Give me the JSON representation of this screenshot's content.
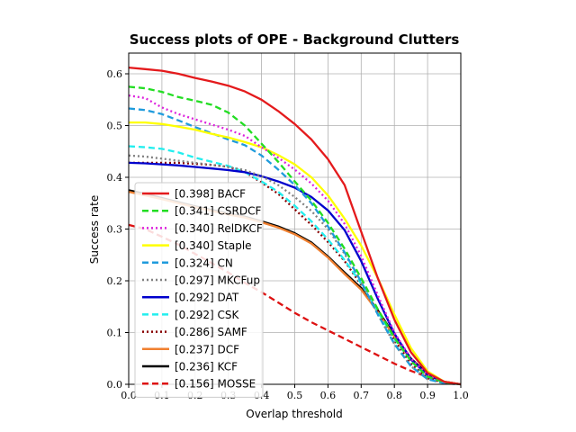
{
  "chart_data": {
    "type": "line",
    "title": "Success plots of OPE - Background Clutters",
    "xlabel": "Overlap threshold",
    "ylabel": "Success rate",
    "xlim": [
      0,
      1
    ],
    "ylim": [
      0,
      0.64
    ],
    "xticks": [
      "0.0",
      "0.1",
      "0.2",
      "0.3",
      "0.4",
      "0.5",
      "0.6",
      "0.7",
      "0.8",
      "0.9",
      "1.0"
    ],
    "yticks": [
      "0.0",
      "0.1",
      "0.2",
      "0.3",
      "0.4",
      "0.5",
      "0.6"
    ],
    "xtick_values": [
      0,
      0.1,
      0.2,
      0.3,
      0.4,
      0.5,
      0.6,
      0.7,
      0.8,
      0.9,
      1.0
    ],
    "ytick_values": [
      0,
      0.1,
      0.2,
      0.3,
      0.4,
      0.5,
      0.6
    ],
    "grid": true,
    "legend_position": "lower-left",
    "series": [
      {
        "name": "[0.398] BACF",
        "color": "#e41a1c",
        "dash": "solid",
        "x": [
          0,
          0.05,
          0.1,
          0.15,
          0.2,
          0.25,
          0.3,
          0.35,
          0.4,
          0.45,
          0.5,
          0.55,
          0.6,
          0.65,
          0.7,
          0.75,
          0.8,
          0.85,
          0.9,
          0.95,
          1.0
        ],
        "y": [
          0.612,
          0.609,
          0.606,
          0.6,
          0.592,
          0.585,
          0.577,
          0.566,
          0.55,
          0.528,
          0.503,
          0.473,
          0.435,
          0.385,
          0.295,
          0.205,
          0.125,
          0.062,
          0.022,
          0.005,
          0.0
        ]
      },
      {
        "name": "[0.341] CSRDCF",
        "color": "#22dd22",
        "dash": "dashed",
        "x": [
          0,
          0.05,
          0.1,
          0.15,
          0.2,
          0.25,
          0.3,
          0.35,
          0.4,
          0.45,
          0.5,
          0.55,
          0.6,
          0.65,
          0.7,
          0.75,
          0.8,
          0.85,
          0.9,
          0.95,
          1.0
        ],
        "y": [
          0.575,
          0.572,
          0.565,
          0.555,
          0.548,
          0.54,
          0.525,
          0.5,
          0.465,
          0.43,
          0.392,
          0.355,
          0.312,
          0.262,
          0.205,
          0.145,
          0.09,
          0.045,
          0.015,
          0.004,
          0.0
        ]
      },
      {
        "name": "[0.340] RelDKCF",
        "color": "#dd22dd",
        "dash": "dotted",
        "x": [
          0,
          0.05,
          0.1,
          0.15,
          0.2,
          0.25,
          0.3,
          0.35,
          0.4,
          0.45,
          0.5,
          0.55,
          0.6,
          0.65,
          0.7,
          0.75,
          0.8,
          0.85,
          0.9,
          0.95,
          1.0
        ],
        "y": [
          0.558,
          0.553,
          0.535,
          0.522,
          0.512,
          0.502,
          0.492,
          0.48,
          0.458,
          0.438,
          0.415,
          0.388,
          0.355,
          0.31,
          0.248,
          0.172,
          0.1,
          0.05,
          0.018,
          0.004,
          0.0
        ]
      },
      {
        "name": "[0.340] Staple",
        "color": "#ffff00",
        "dash": "solid",
        "x": [
          0,
          0.05,
          0.1,
          0.15,
          0.2,
          0.25,
          0.3,
          0.35,
          0.4,
          0.45,
          0.5,
          0.55,
          0.6,
          0.65,
          0.7,
          0.75,
          0.8,
          0.85,
          0.9,
          0.95,
          1.0
        ],
        "y": [
          0.506,
          0.506,
          0.503,
          0.498,
          0.492,
          0.484,
          0.477,
          0.468,
          0.458,
          0.443,
          0.425,
          0.4,
          0.365,
          0.32,
          0.268,
          0.205,
          0.135,
          0.07,
          0.025,
          0.005,
          0.0
        ]
      },
      {
        "name": "[0.324] CN",
        "color": "#1f9bdc",
        "dash": "dashed",
        "x": [
          0,
          0.05,
          0.1,
          0.15,
          0.2,
          0.25,
          0.3,
          0.35,
          0.4,
          0.45,
          0.5,
          0.55,
          0.6,
          0.65,
          0.7,
          0.75,
          0.8,
          0.85,
          0.9,
          0.95,
          1.0
        ],
        "y": [
          0.533,
          0.53,
          0.522,
          0.51,
          0.497,
          0.485,
          0.473,
          0.462,
          0.442,
          0.415,
          0.385,
          0.35,
          0.305,
          0.255,
          0.198,
          0.135,
          0.078,
          0.035,
          0.01,
          0.002,
          0.0
        ]
      },
      {
        "name": "[0.297] MKCFup",
        "color": "#808080",
        "dash": "dotted",
        "x": [
          0,
          0.05,
          0.1,
          0.15,
          0.2,
          0.25,
          0.3,
          0.35,
          0.4,
          0.45,
          0.5,
          0.55,
          0.6,
          0.65,
          0.7,
          0.75,
          0.8,
          0.85,
          0.9,
          0.95,
          1.0
        ],
        "y": [
          0.442,
          0.44,
          0.436,
          0.432,
          0.428,
          0.424,
          0.42,
          0.414,
          0.402,
          0.385,
          0.362,
          0.335,
          0.3,
          0.252,
          0.198,
          0.135,
          0.078,
          0.035,
          0.01,
          0.002,
          0.0
        ]
      },
      {
        "name": "[0.292] DAT",
        "color": "#0000cc",
        "dash": "solid",
        "x": [
          0,
          0.05,
          0.1,
          0.15,
          0.2,
          0.25,
          0.3,
          0.35,
          0.4,
          0.45,
          0.5,
          0.55,
          0.6,
          0.65,
          0.7,
          0.75,
          0.8,
          0.85,
          0.9,
          0.95,
          1.0
        ],
        "y": [
          0.428,
          0.427,
          0.425,
          0.423,
          0.42,
          0.417,
          0.414,
          0.41,
          0.402,
          0.392,
          0.38,
          0.362,
          0.336,
          0.298,
          0.238,
          0.165,
          0.098,
          0.048,
          0.018,
          0.004,
          0.0
        ]
      },
      {
        "name": "[0.292] CSK",
        "color": "#22eeee",
        "dash": "dashed",
        "x": [
          0,
          0.05,
          0.1,
          0.15,
          0.2,
          0.25,
          0.3,
          0.35,
          0.4,
          0.45,
          0.5,
          0.55,
          0.6,
          0.65,
          0.7,
          0.75,
          0.8,
          0.85,
          0.9,
          0.95,
          1.0
        ],
        "y": [
          0.46,
          0.458,
          0.455,
          0.448,
          0.438,
          0.43,
          0.422,
          0.41,
          0.392,
          0.372,
          0.345,
          0.315,
          0.28,
          0.24,
          0.195,
          0.14,
          0.088,
          0.045,
          0.015,
          0.004,
          0.0
        ]
      },
      {
        "name": "[0.286] SAMF",
        "color": "#880000",
        "dash": "dotted",
        "x": [
          0,
          0.05,
          0.1,
          0.15,
          0.2,
          0.25,
          0.3,
          0.35,
          0.4,
          0.45,
          0.5,
          0.55,
          0.6,
          0.65,
          0.7,
          0.75,
          0.8,
          0.85,
          0.9,
          0.95,
          1.0
        ],
        "y": [
          0.428,
          0.428,
          0.428,
          0.428,
          0.426,
          0.424,
          0.42,
          0.41,
          0.39,
          0.368,
          0.338,
          0.308,
          0.275,
          0.238,
          0.192,
          0.14,
          0.085,
          0.04,
          0.012,
          0.003,
          0.0
        ]
      },
      {
        "name": "[0.237] DCF",
        "color": "#f08030",
        "dash": "solid",
        "x": [
          0,
          0.05,
          0.1,
          0.15,
          0.2,
          0.25,
          0.3,
          0.35,
          0.4,
          0.45,
          0.5,
          0.55,
          0.6,
          0.65,
          0.7,
          0.75,
          0.8,
          0.85,
          0.9,
          0.95,
          1.0
        ],
        "y": [
          0.372,
          0.365,
          0.358,
          0.35,
          0.342,
          0.335,
          0.328,
          0.322,
          0.313,
          0.303,
          0.29,
          0.272,
          0.245,
          0.213,
          0.183,
          0.14,
          0.092,
          0.048,
          0.018,
          0.004,
          0.0
        ]
      },
      {
        "name": "[0.236] KCF",
        "color": "#000000",
        "dash": "solid",
        "x": [
          0,
          0.05,
          0.1,
          0.15,
          0.2,
          0.25,
          0.3,
          0.35,
          0.4,
          0.45,
          0.5,
          0.55,
          0.6,
          0.65,
          0.7,
          0.75,
          0.8,
          0.85,
          0.9,
          0.95,
          1.0
        ],
        "y": [
          0.375,
          0.368,
          0.36,
          0.352,
          0.344,
          0.337,
          0.33,
          0.324,
          0.315,
          0.305,
          0.292,
          0.274,
          0.247,
          0.216,
          0.186,
          0.143,
          0.095,
          0.05,
          0.02,
          0.005,
          0.0
        ]
      },
      {
        "name": "[0.156] MOSSE",
        "color": "#dd1111",
        "dash": "dashed",
        "x": [
          0,
          0.05,
          0.1,
          0.15,
          0.2,
          0.25,
          0.3,
          0.35,
          0.4,
          0.45,
          0.5,
          0.55,
          0.6,
          0.65,
          0.7,
          0.75,
          0.8,
          0.85,
          0.9,
          0.95,
          1.0
        ],
        "y": [
          0.308,
          0.3,
          0.285,
          0.27,
          0.252,
          0.234,
          0.216,
          0.196,
          0.178,
          0.158,
          0.138,
          0.12,
          0.104,
          0.088,
          0.072,
          0.056,
          0.04,
          0.026,
          0.014,
          0.005,
          0.0
        ]
      }
    ]
  }
}
